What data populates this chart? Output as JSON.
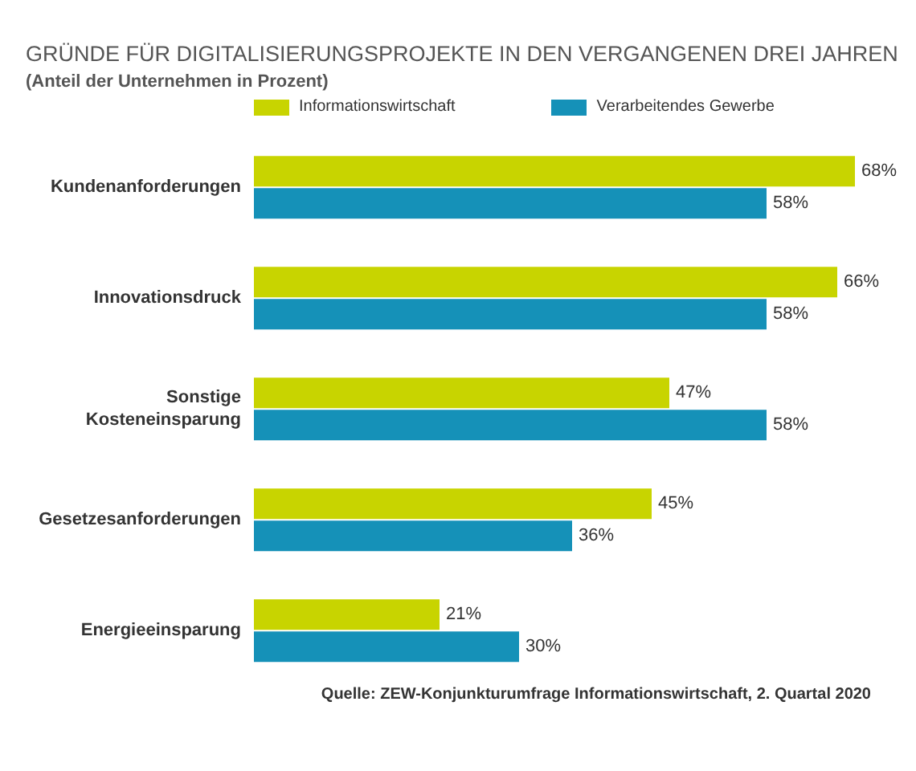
{
  "chart_data": {
    "type": "bar",
    "orientation": "horizontal",
    "title": "GRÜNDE FÜR DIGITALISIERUNGSPROJEKTE IN DEN VERGANGENEN DREI JAHREN",
    "subtitle": "(Anteil der Unternehmen in Prozent)",
    "categories": [
      "Kundenanforderungen",
      "Innovationsdruck",
      "Sonstige Kosteneinsparung",
      "Gesetzesanforderungen",
      "Energieeinsparung"
    ],
    "series": [
      {
        "name": "Informationswirtschaft",
        "color": "#c8d400",
        "values": [
          68,
          66,
          47,
          45,
          21
        ],
        "value_labels": [
          "68%",
          "66%",
          "47%",
          "45%",
          "21%"
        ]
      },
      {
        "name": "Verarbeitendes Gewerbe",
        "color": "#1591b8",
        "values": [
          58,
          58,
          58,
          36,
          30
        ],
        "value_labels": [
          "58%",
          "58%",
          "58%",
          "36%",
          "30%"
        ]
      }
    ],
    "legend": "top left",
    "grid": false,
    "annotations": [
      "Quelle: ZEW-Konjunkturumfrage Informationswirtschaft, 2. Quartal 2020"
    ]
  }
}
